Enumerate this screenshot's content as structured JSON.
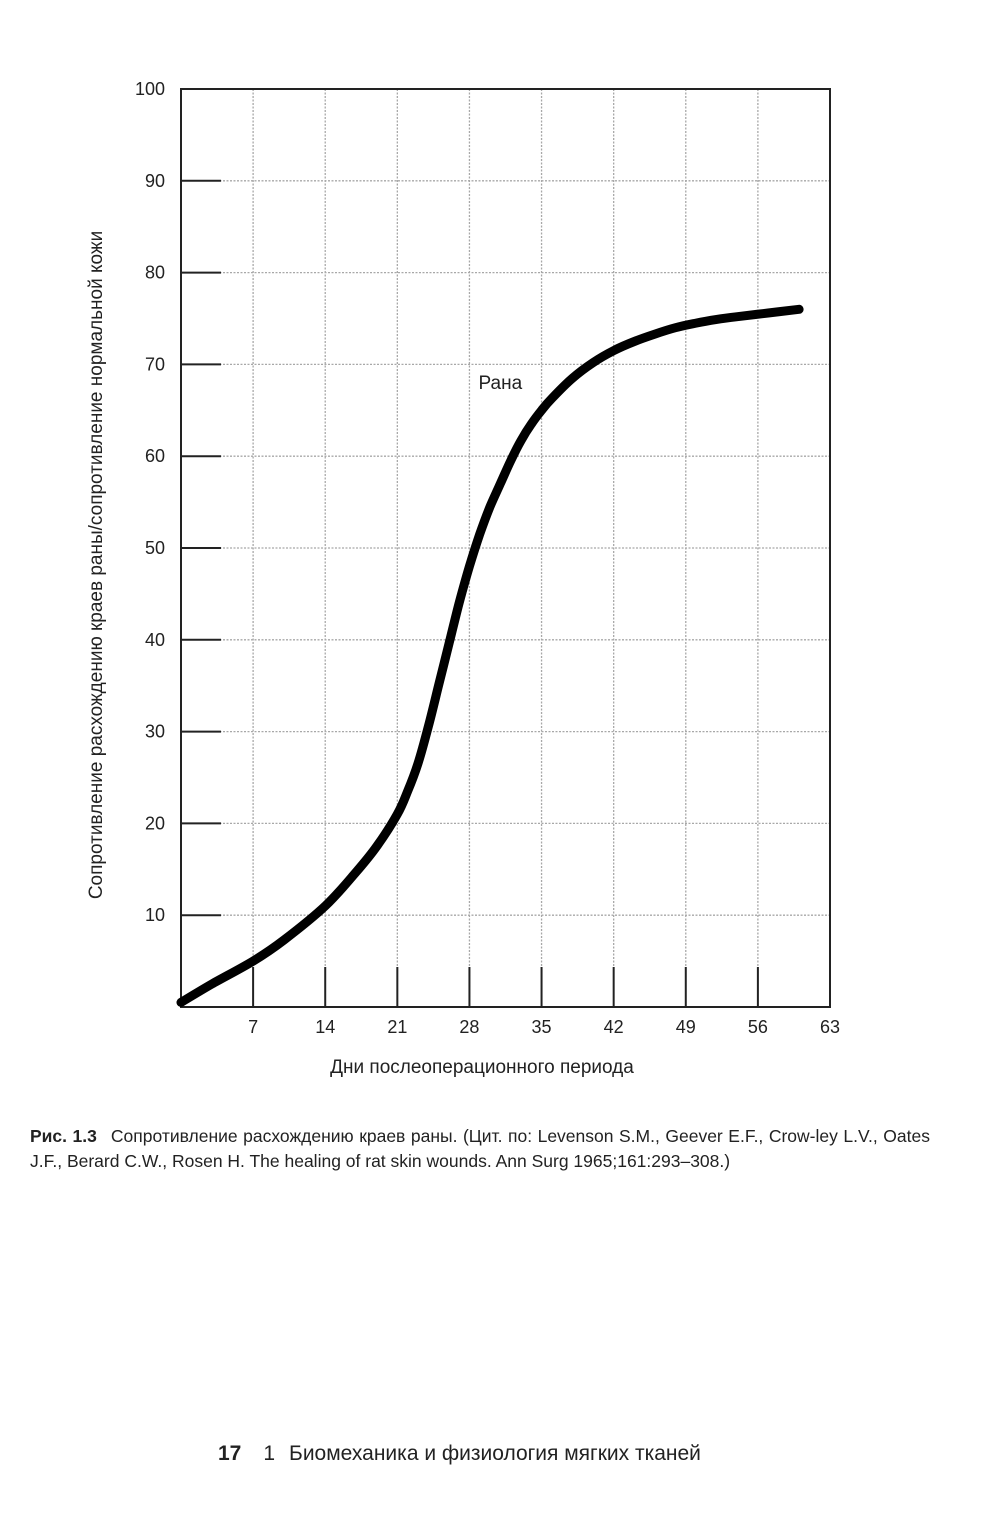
{
  "chart_data": {
    "type": "line",
    "xlabel": "Дни послеоперационного периода",
    "ylabel": "Сопротивление расхождению краев раны/сопротивление нормальной кожи",
    "xlim": [
      0,
      63
    ],
    "ylim": [
      0,
      100
    ],
    "x_ticks": [
      7,
      14,
      21,
      28,
      35,
      42,
      49,
      56,
      63
    ],
    "y_ticks": [
      10,
      20,
      30,
      40,
      50,
      60,
      70,
      80,
      90,
      100
    ],
    "grid": true,
    "annotations": [
      {
        "text": "Рана",
        "x": 31,
        "y": 68
      }
    ],
    "series": [
      {
        "name": "Рана",
        "color": "#000000",
        "x": [
          0,
          3,
          7,
          10,
          14,
          17,
          19,
          21,
          22,
          23,
          24,
          25,
          26,
          27,
          28,
          29,
          30,
          31,
          32,
          33,
          34,
          35,
          36,
          38,
          40,
          42,
          44,
          46,
          48,
          50,
          52,
          54,
          57,
          60
        ],
        "y": [
          0.5,
          2.5,
          5,
          7.3,
          11,
          14.7,
          17.5,
          21,
          23.5,
          26.5,
          30.5,
          35,
          39.5,
          44,
          48,
          51.5,
          54.5,
          57,
          59.5,
          61.7,
          63.5,
          65,
          66.3,
          68.5,
          70.2,
          71.5,
          72.5,
          73.3,
          74,
          74.5,
          74.9,
          75.2,
          75.6,
          76
        ]
      }
    ]
  },
  "caption": {
    "label": "Рис. 1.3",
    "text": "Сопротивление расхождению краев раны. (Цит. по: Levenson S.M., Geever E.F., Crow-ley L.V., Oates J.F., Berard C.W., Rosen H. The healing of rat skin wounds. Ann Surg 1965;161:293–308.)"
  },
  "footer": {
    "page_number": "17",
    "chapter_number": "1",
    "chapter_title": "Биомеханика и физиология мягких тканей"
  }
}
